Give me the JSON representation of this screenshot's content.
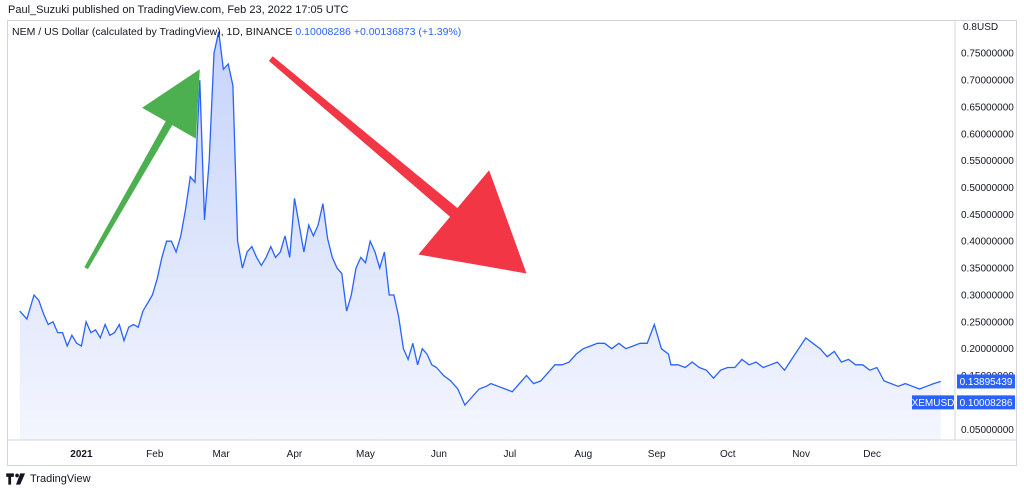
{
  "header": {
    "published_text": "Paul_Suzuki published on TradingView.com, Feb 23, 2022 17:05 UTC"
  },
  "legend": {
    "symbol_text": "NEM / US Dollar (calculated by TradingView), 1D, BINANCE",
    "price": "0.10008286",
    "change": "+0.00136873 (+1.39%)"
  },
  "footer": {
    "brand": "TradingView"
  },
  "colors": {
    "line": "#2962ff",
    "area_top": "#c5d3fb",
    "area_bottom": "#f4f6fe",
    "arrow_up": "#4caf50",
    "arrow_down": "#f23645",
    "axis_text": "#131722",
    "grid": "#f0f3fa"
  },
  "chart_data": {
    "type": "area",
    "series": [
      {
        "name": "XEMUSD",
        "x": [
          "2020-12-06",
          "2020-12-09",
          "2020-12-12",
          "2020-12-14",
          "2020-12-16",
          "2020-12-18",
          "2020-12-20",
          "2020-12-22",
          "2020-12-24",
          "2020-12-26",
          "2020-12-28",
          "2020-12-30",
          "2021-01-01",
          "2021-01-03",
          "2021-01-05",
          "2021-01-07",
          "2021-01-09",
          "2021-01-11",
          "2021-01-13",
          "2021-01-15",
          "2021-01-17",
          "2021-01-19",
          "2021-01-21",
          "2021-01-23",
          "2021-01-25",
          "2021-01-27",
          "2021-01-29",
          "2021-01-31",
          "2021-02-02",
          "2021-02-04",
          "2021-02-06",
          "2021-02-08",
          "2021-02-10",
          "2021-02-12",
          "2021-02-14",
          "2021-02-16",
          "2021-02-18",
          "2021-02-20",
          "2021-02-22",
          "2021-02-24",
          "2021-02-26",
          "2021-02-28",
          "2021-03-02",
          "2021-03-04",
          "2021-03-06",
          "2021-03-08",
          "2021-03-10",
          "2021-03-12",
          "2021-03-14",
          "2021-03-16",
          "2021-03-18",
          "2021-03-20",
          "2021-03-22",
          "2021-03-24",
          "2021-03-26",
          "2021-03-28",
          "2021-03-30",
          "2021-04-01",
          "2021-04-03",
          "2021-04-05",
          "2021-04-07",
          "2021-04-09",
          "2021-04-11",
          "2021-04-13",
          "2021-04-15",
          "2021-04-17",
          "2021-04-19",
          "2021-04-21",
          "2021-04-23",
          "2021-04-25",
          "2021-04-27",
          "2021-04-29",
          "2021-05-01",
          "2021-05-03",
          "2021-05-05",
          "2021-05-07",
          "2021-05-09",
          "2021-05-11",
          "2021-05-13",
          "2021-05-15",
          "2021-05-17",
          "2021-05-19",
          "2021-05-21",
          "2021-05-23",
          "2021-05-25",
          "2021-05-27",
          "2021-05-29",
          "2021-05-31",
          "2021-06-03",
          "2021-06-06",
          "2021-06-09",
          "2021-06-12",
          "2021-06-15",
          "2021-06-18",
          "2021-06-21",
          "2021-06-23",
          "2021-06-26",
          "2021-06-29",
          "2021-07-02",
          "2021-07-05",
          "2021-07-08",
          "2021-07-11",
          "2021-07-14",
          "2021-07-17",
          "2021-07-20",
          "2021-07-23",
          "2021-07-26",
          "2021-07-29",
          "2021-08-01",
          "2021-08-04",
          "2021-08-07",
          "2021-08-10",
          "2021-08-13",
          "2021-08-16",
          "2021-08-19",
          "2021-08-22",
          "2021-08-25",
          "2021-08-28",
          "2021-08-31",
          "2021-09-03",
          "2021-09-06",
          "2021-09-07",
          "2021-09-10",
          "2021-09-13",
          "2021-09-16",
          "2021-09-19",
          "2021-09-22",
          "2021-09-25",
          "2021-09-28",
          "2021-10-01",
          "2021-10-04",
          "2021-10-07",
          "2021-10-10",
          "2021-10-13",
          "2021-10-16",
          "2021-10-19",
          "2021-10-22",
          "2021-10-25",
          "2021-10-28",
          "2021-10-31",
          "2021-11-03",
          "2021-11-06",
          "2021-11-09",
          "2021-11-12",
          "2021-11-15",
          "2021-11-18",
          "2021-11-21",
          "2021-11-24",
          "2021-11-27",
          "2021-11-30",
          "2021-12-03",
          "2021-12-06",
          "2021-12-09",
          "2021-12-12",
          "2021-12-15",
          "2021-12-18",
          "2021-12-21",
          "2021-12-24",
          "2021-12-27",
          "2021-12-30"
        ],
        "values": [
          0.27,
          0.255,
          0.3,
          0.29,
          0.265,
          0.245,
          0.25,
          0.23,
          0.23,
          0.205,
          0.225,
          0.21,
          0.205,
          0.25,
          0.23,
          0.235,
          0.22,
          0.245,
          0.225,
          0.23,
          0.245,
          0.215,
          0.24,
          0.245,
          0.24,
          0.27,
          0.285,
          0.3,
          0.33,
          0.37,
          0.4,
          0.4,
          0.38,
          0.41,
          0.46,
          0.52,
          0.51,
          0.7,
          0.44,
          0.55,
          0.75,
          0.79,
          0.72,
          0.73,
          0.69,
          0.4,
          0.35,
          0.38,
          0.39,
          0.37,
          0.355,
          0.37,
          0.39,
          0.37,
          0.38,
          0.41,
          0.37,
          0.48,
          0.43,
          0.38,
          0.43,
          0.41,
          0.43,
          0.47,
          0.405,
          0.37,
          0.35,
          0.34,
          0.27,
          0.3,
          0.35,
          0.37,
          0.36,
          0.4,
          0.38,
          0.35,
          0.38,
          0.3,
          0.3,
          0.26,
          0.2,
          0.18,
          0.21,
          0.17,
          0.2,
          0.19,
          0.17,
          0.165,
          0.15,
          0.14,
          0.125,
          0.095,
          0.11,
          0.125,
          0.13,
          0.135,
          0.13,
          0.125,
          0.12,
          0.135,
          0.15,
          0.135,
          0.14,
          0.155,
          0.17,
          0.17,
          0.175,
          0.19,
          0.2,
          0.205,
          0.21,
          0.21,
          0.2,
          0.21,
          0.2,
          0.205,
          0.21,
          0.21,
          0.245,
          0.2,
          0.19,
          0.17,
          0.17,
          0.165,
          0.175,
          0.165,
          0.16,
          0.145,
          0.16,
          0.165,
          0.165,
          0.18,
          0.17,
          0.175,
          0.165,
          0.17,
          0.175,
          0.16,
          0.18,
          0.2,
          0.22,
          0.21,
          0.2,
          0.185,
          0.195,
          0.175,
          0.18,
          0.17,
          0.17,
          0.16,
          0.165,
          0.14,
          0.135,
          0.13,
          0.135,
          0.13,
          0.125,
          0.13,
          0.135,
          0.139
        ]
      }
    ],
    "ylim": [
      0.03,
      0.81
    ],
    "y_ticks": [
      "0.05000000",
      "0.10000000",
      "0.15000000",
      "0.20000000",
      "0.25000000",
      "0.30000000",
      "0.35000000",
      "0.40000000",
      "0.45000000",
      "0.50000000",
      "0.55000000",
      "0.60000000",
      "0.65000000",
      "0.70000000",
      "0.75000000",
      "0.80000000"
    ],
    "y_ticks_top_label": "0.8",
    "y_unit": "USD",
    "x_range": [
      "2020-12-01",
      "2022-01-05"
    ],
    "x_ticks": [
      {
        "label": "2021",
        "date": "2021-01-01",
        "bold": true
      },
      {
        "label": "Feb",
        "date": "2021-02-01"
      },
      {
        "label": "Mar",
        "date": "2021-03-01"
      },
      {
        "label": "Apr",
        "date": "2021-04-01"
      },
      {
        "label": "May",
        "date": "2021-05-01"
      },
      {
        "label": "Jun",
        "date": "2021-06-01"
      },
      {
        "label": "Jul",
        "date": "2021-07-01"
      },
      {
        "label": "Aug",
        "date": "2021-08-01"
      },
      {
        "label": "Sep",
        "date": "2021-09-01"
      },
      {
        "label": "Oct",
        "date": "2021-10-01"
      },
      {
        "label": "Nov",
        "date": "2021-11-01"
      },
      {
        "label": "Dec",
        "date": "2021-12-01"
      }
    ],
    "price_labels": [
      {
        "text": "0.13895439",
        "value": 0.13895439,
        "style": "filled"
      },
      {
        "text": "XEMUSD",
        "value": 0.10008286,
        "style": "filled"
      },
      {
        "text": "0.10008286",
        "value": 0.10008286,
        "style": "filled"
      }
    ],
    "annotations": [
      {
        "type": "arrow-up",
        "from": {
          "x": "2021-01-03",
          "y": 0.35
        },
        "to": {
          "x": "2021-02-20",
          "y": 0.72
        }
      },
      {
        "type": "arrow-down",
        "from": {
          "x": "2021-03-22",
          "y": 0.74
        },
        "to": {
          "x": "2021-07-08",
          "y": 0.34
        }
      }
    ]
  }
}
